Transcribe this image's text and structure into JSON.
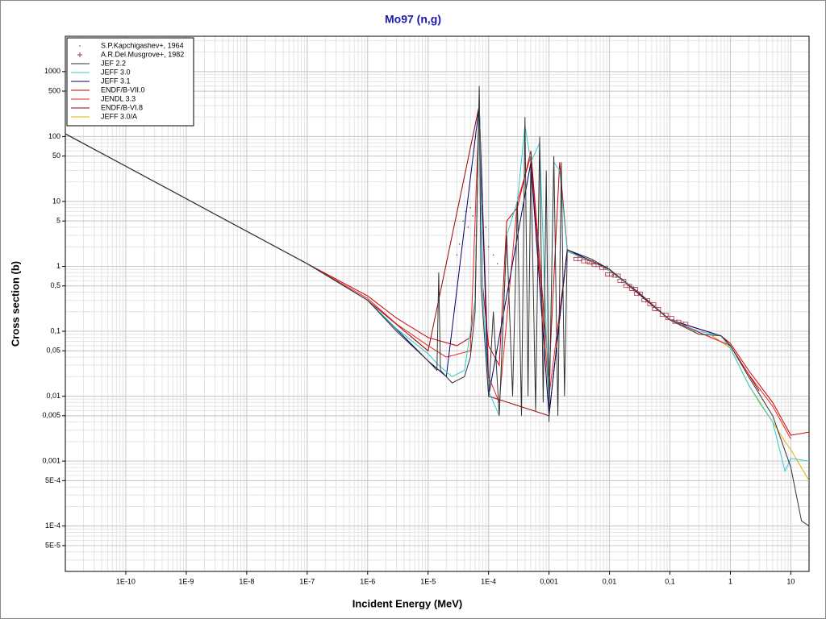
{
  "chart_data": {
    "type": "line",
    "title": "Mo97 (n,g)",
    "x_label": "Incident Energy (MeV)",
    "y_label": "Cross section (b)",
    "xscale": "log",
    "yscale": "log",
    "grid": true,
    "legend": "upper left",
    "xlim": [
      1e-11,
      20
    ],
    "ylim": [
      2e-05,
      3500
    ],
    "xticks": [
      {
        "value": 1e-10,
        "label": "1E-10"
      },
      {
        "value": 1e-09,
        "label": "1E-9"
      },
      {
        "value": 1e-08,
        "label": "1E-8"
      },
      {
        "value": 1e-07,
        "label": "1E-7"
      },
      {
        "value": 1e-06,
        "label": "1E-6"
      },
      {
        "value": 1e-05,
        "label": "1E-5"
      },
      {
        "value": 0.0001,
        "label": "1E-4"
      },
      {
        "value": 0.001,
        "label": "0,001"
      },
      {
        "value": 0.01,
        "label": "0,01"
      },
      {
        "value": 0.1,
        "label": "0,1"
      },
      1,
      10
    ],
    "yticks": [
      {
        "value": 5e-05,
        "label": "5E-5"
      },
      {
        "value": 0.0001,
        "label": "1E-4"
      },
      {
        "value": 0.0005,
        "label": "5E-4"
      },
      {
        "value": 0.001,
        "label": "0,001"
      },
      {
        "value": 0.005,
        "label": "0,005"
      },
      {
        "value": 0.01,
        "label": "0,01"
      },
      {
        "value": 0.05,
        "label": "0,05"
      },
      {
        "value": 0.1,
        "label": "0,1"
      },
      {
        "value": 0.5,
        "label": "0,5"
      },
      1,
      5,
      10,
      50,
      100,
      500,
      1000
    ],
    "series": [
      {
        "name": "S.P.Kapchigashev+, 1964",
        "style": "points",
        "marker": "dot",
        "color": "#555555",
        "x": [
          3e-05,
          3.3e-05,
          3.8e-05,
          4.2e-05,
          4.6e-05,
          5e-05,
          5.5e-05,
          6e-05,
          8e-05,
          9e-05,
          0.0001,
          0.00012,
          0.00014
        ],
        "values": [
          1.5,
          2.2,
          5,
          7,
          4,
          8,
          6,
          3,
          7,
          4,
          2,
          1.5,
          1.1
        ]
      },
      {
        "name": "A.R.Del.Musgrove+, 1982",
        "style": "points",
        "marker": "plus",
        "color": "#b03040",
        "x": [
          0.003,
          0.004,
          0.005,
          0.006,
          0.008,
          0.01,
          0.013,
          0.016,
          0.02,
          0.025,
          0.03,
          0.04,
          0.05,
          0.06,
          0.08,
          0.1,
          0.13,
          0.17
        ],
        "values": [
          1.3,
          1.2,
          1.15,
          1.05,
          0.95,
          0.75,
          0.72,
          0.6,
          0.5,
          0.45,
          0.38,
          0.3,
          0.26,
          0.22,
          0.18,
          0.16,
          0.14,
          0.13
        ]
      },
      {
        "name": "JEF 2.2",
        "style": "line",
        "color": "#333333",
        "x": [
          1e-11,
          1e-09,
          1e-07,
          1e-06,
          3e-06,
          1e-05,
          1.4e-05,
          1.5e-05,
          1.6e-05,
          2.5e-05,
          4e-05,
          5e-05,
          6e-05,
          7e-05,
          7.5e-05,
          0.0001,
          0.00012,
          0.00015,
          0.0002,
          0.00025,
          0.0003,
          0.00035,
          0.0004,
          0.00045,
          0.0005,
          0.0006,
          0.0007,
          0.0008,
          0.0009,
          0.001,
          0.0012,
          0.0014,
          0.0016,
          0.0018,
          0.002,
          0.005,
          0.01,
          0.03,
          0.1,
          0.3,
          0.7,
          1,
          2,
          5,
          10,
          15,
          20
        ],
        "values": [
          110,
          11,
          1.1,
          0.3,
          0.1,
          0.035,
          0.025,
          0.8,
          0.025,
          0.016,
          0.02,
          0.04,
          0.2,
          600,
          0.5,
          0.01,
          0.2,
          0.005,
          3,
          0.01,
          10,
          0.005,
          200,
          0.01,
          50,
          0.006,
          100,
          0.008,
          30,
          0.004,
          50,
          0.005,
          40,
          0.01,
          1.8,
          1.3,
          0.9,
          0.4,
          0.15,
          0.09,
          0.085,
          0.06,
          0.02,
          0.005,
          0.0008,
          0.00012,
          0.0001
        ]
      },
      {
        "name": "JEFF 3.0",
        "style": "line",
        "color": "#33cccc",
        "x": [
          1e-11,
          1e-09,
          1e-07,
          1e-06,
          3e-06,
          1e-05,
          1.5e-05,
          2.5e-05,
          4e-05,
          6e-05,
          7e-05,
          8e-05,
          0.0001,
          0.00015,
          0.0002,
          0.0003,
          0.0004,
          0.0005,
          0.0007,
          0.001,
          0.0012,
          0.0015,
          0.002,
          0.005,
          0.01,
          0.03,
          0.1,
          0.3,
          0.7,
          1,
          2,
          5,
          8,
          10,
          20
        ],
        "values": [
          110,
          11,
          1.1,
          0.3,
          0.11,
          0.045,
          0.03,
          0.02,
          0.025,
          0.3,
          500,
          0.4,
          0.012,
          0.005,
          3,
          10,
          150,
          40,
          80,
          0.006,
          40,
          30,
          1.7,
          1.2,
          0.85,
          0.4,
          0.15,
          0.1,
          0.085,
          0.055,
          0.015,
          0.004,
          0.0007,
          0.0011,
          0.001
        ]
      },
      {
        "name": "JEFF 3.1",
        "style": "line",
        "color": "#000066",
        "x": [
          1e-11,
          1e-09,
          1e-07,
          1e-06,
          1e-05,
          2e-05,
          7e-05,
          0.0001,
          0.0005,
          0.001,
          0.002,
          0.01,
          0.1,
          0.7,
          1
        ],
        "values": [
          110,
          11,
          1.1,
          0.3,
          0.035,
          0.02,
          300,
          0.01,
          40,
          0.005,
          1.8,
          0.9,
          0.15,
          0.085,
          0.06
        ]
      },
      {
        "name": "ENDF/B-VII.0",
        "style": "line",
        "color": "#cc0000",
        "x": [
          1e-11,
          1e-09,
          1e-07,
          1e-06,
          3e-06,
          1e-05,
          3e-05,
          5e-05,
          6e-05,
          7e-05,
          8e-05,
          0.0001,
          0.00015,
          0.0002,
          0.0003,
          0.0005,
          0.001,
          0.0015,
          0.002,
          0.01,
          0.1,
          0.7,
          1,
          2,
          5,
          10,
          20
        ],
        "values": [
          110,
          11,
          1.1,
          0.35,
          0.16,
          0.08,
          0.06,
          0.08,
          0.3,
          400,
          0.5,
          0.06,
          0.03,
          5,
          8,
          60,
          0.02,
          40,
          1.8,
          0.9,
          0.15,
          0.085,
          0.065,
          0.025,
          0.008,
          0.0025,
          0.0028
        ]
      },
      {
        "name": "JENDL 3.3",
        "style": "line",
        "color": "#ee2222",
        "x": [
          1e-11,
          1e-09,
          1e-07,
          1e-06,
          3e-06,
          1e-05,
          2e-05,
          5e-05,
          7e-05,
          0.0001,
          0.00015,
          0.0003,
          0.0005,
          0.001,
          0.002,
          0.01,
          0.1,
          1,
          2,
          5,
          10
        ],
        "values": [
          110,
          11,
          1.1,
          0.32,
          0.13,
          0.06,
          0.04,
          0.05,
          300,
          0.02,
          0.008,
          10,
          50,
          0.01,
          1.7,
          0.9,
          0.15,
          0.06,
          0.022,
          0.007,
          0.0022
        ]
      },
      {
        "name": "ENDF/B-VI.8",
        "style": "line",
        "color": "#990000",
        "x": [
          1e-11,
          1e-09,
          1e-07,
          1e-06,
          1e-05,
          7e-05,
          0.0001,
          0.001,
          0.002,
          0.01,
          0.1,
          1,
          3
        ],
        "values": [
          110,
          11,
          1.1,
          0.3,
          0.05,
          300,
          0.01,
          0.005,
          1.8,
          0.9,
          0.15,
          0.06,
          0.012
        ]
      },
      {
        "name": "JEFF 3.0/A",
        "style": "line",
        "color": "#e0b000",
        "x": [
          0.5,
          1,
          2,
          3,
          5,
          8,
          10,
          20
        ],
        "values": [
          0.085,
          0.055,
          0.015,
          0.008,
          0.004,
          0.002,
          0.0015,
          0.0005
        ]
      }
    ]
  }
}
